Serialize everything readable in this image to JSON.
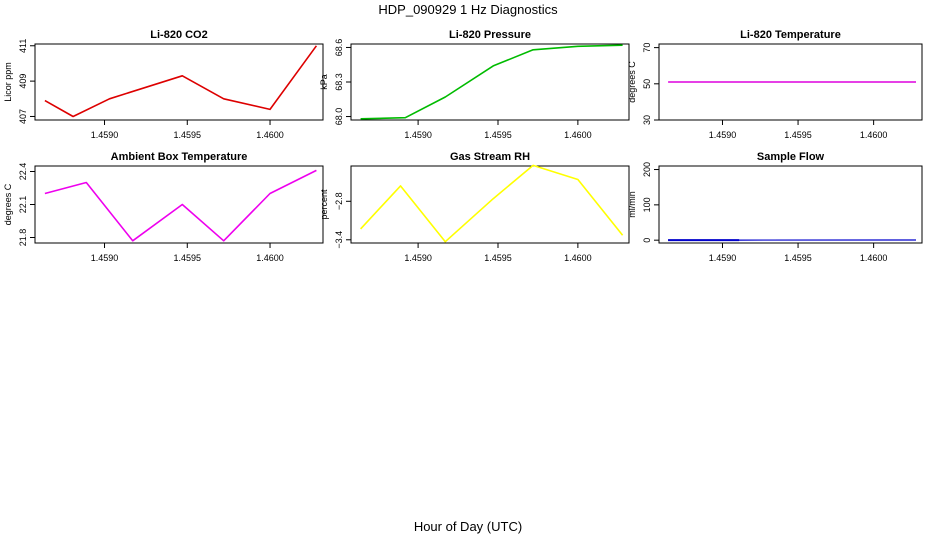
{
  "title": "HDP_090929  1 Hz Diagnostics",
  "xlabel": "Hour of Day (UTC)",
  "chart_data": [
    {
      "type": "line",
      "title": "Li-820 CO2",
      "ylabel": "Licor ppm",
      "color": "#dd0000",
      "xlim": [
        1.45858,
        1.46032
      ],
      "ylim": [
        406.8,
        411.1
      ],
      "yticks": [
        407,
        409,
        411
      ],
      "ytick_labels": [
        "407",
        "409",
        "411"
      ],
      "xticks": [
        1.459,
        1.4595,
        1.46
      ],
      "xtick_labels": [
        "1.4590",
        "1.4595",
        "1.4600"
      ],
      "x": [
        1.45864,
        1.45881,
        1.45903,
        1.45947,
        1.45972,
        1.46,
        1.46028
      ],
      "y": [
        407.9,
        407.0,
        408.0,
        409.3,
        408.0,
        407.4,
        411.0
      ]
    },
    {
      "type": "line",
      "title": "Li-820 Pressure",
      "ylabel": "kPa",
      "color": "#00bb00",
      "xlim": [
        1.45858,
        1.46032
      ],
      "ylim": [
        67.97,
        68.63
      ],
      "yticks": [
        68.0,
        68.3,
        68.6
      ],
      "ytick_labels": [
        "68.0",
        "68.3",
        "68.6"
      ],
      "x": [
        1.45864,
        1.45892,
        1.45917,
        1.45947,
        1.45972,
        1.46,
        1.46028
      ],
      "y": [
        67.98,
        67.99,
        68.17,
        68.44,
        68.58,
        68.61,
        68.62
      ],
      "xticks": [
        1.459,
        1.4595,
        1.46
      ],
      "xtick_labels": [
        "1.4590",
        "1.4595",
        "1.4600"
      ]
    },
    {
      "type": "line",
      "title": "Li-820 Temperature",
      "ylabel": "degrees C",
      "color": "#dd00dd",
      "xlim": [
        1.45858,
        1.46032
      ],
      "ylim": [
        30,
        72
      ],
      "yticks": [
        30,
        50,
        70
      ],
      "ytick_labels": [
        "30",
        "50",
        "70"
      ],
      "x": [
        1.45864,
        1.46028
      ],
      "y": [
        51,
        51
      ],
      "xticks": [
        1.459,
        1.4595,
        1.46
      ],
      "xtick_labels": [
        "1.4590",
        "1.4595",
        "1.4600"
      ]
    },
    {
      "type": "line",
      "title": "Ambient Box Temperature",
      "ylabel": "degrees C",
      "color": "#ee00ee",
      "xlim": [
        1.45858,
        1.46032
      ],
      "ylim": [
        21.75,
        22.45
      ],
      "yticks": [
        21.8,
        22.1,
        22.4
      ],
      "ytick_labels": [
        "21.8",
        "22.1",
        "22.4"
      ],
      "x": [
        1.45864,
        1.45889,
        1.45917,
        1.45947,
        1.45972,
        1.46,
        1.46028
      ],
      "y": [
        22.2,
        22.3,
        21.77,
        22.1,
        21.77,
        22.2,
        22.41
      ],
      "xticks": [
        1.459,
        1.4595,
        1.46
      ],
      "xtick_labels": [
        "1.4590",
        "1.4595",
        "1.4600"
      ]
    },
    {
      "type": "line",
      "title": "Gas Stream RH",
      "ylabel": "percent",
      "color": "#ffff00",
      "xlim": [
        1.45858,
        1.46032
      ],
      "ylim": [
        -3.45,
        -2.25
      ],
      "yticks": [
        -3.4,
        -2.8
      ],
      "ytick_labels": [
        "−3.4",
        "−2.8"
      ],
      "x": [
        1.45864,
        1.45889,
        1.45917,
        1.45947,
        1.45972,
        1.46,
        1.46028
      ],
      "y": [
        -3.23,
        -2.56,
        -3.43,
        -2.76,
        -2.24,
        -2.46,
        -3.33
      ],
      "xticks": [
        1.459,
        1.4595,
        1.46
      ],
      "xtick_labels": [
        "1.4590",
        "1.4595",
        "1.4600"
      ]
    },
    {
      "type": "line",
      "title": "Sample Flow",
      "ylabel": "ml/min",
      "color": "#0000cc",
      "xlim": [
        1.45858,
        1.46032
      ],
      "ylim": [
        -8,
        210
      ],
      "yticks": [
        0,
        100,
        200
      ],
      "ytick_labels": [
        "0",
        "100",
        "200"
      ],
      "x": [
        1.45864,
        1.45911,
        1.46028
      ],
      "y": [
        0.3,
        0.3,
        0.6
      ],
      "xticks": [
        1.459,
        1.4595,
        1.46
      ],
      "xtick_labels": [
        "1.4590",
        "1.4595",
        "1.4600"
      ]
    }
  ]
}
